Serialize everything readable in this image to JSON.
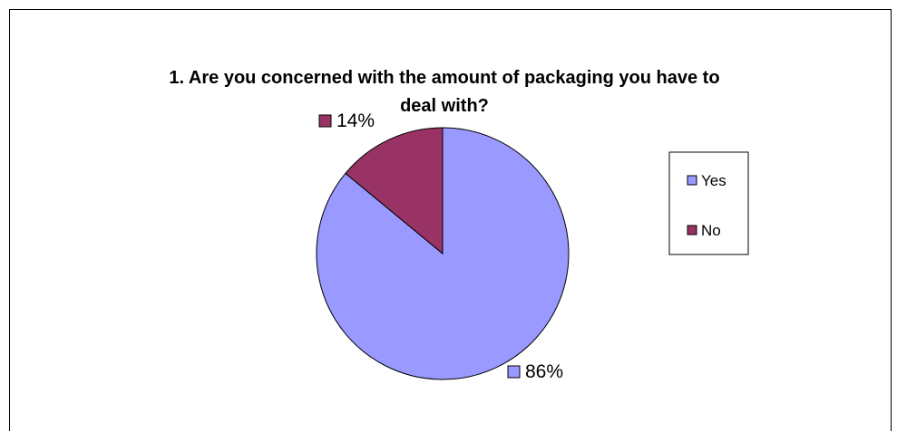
{
  "chart_data": {
    "type": "pie",
    "title": "1. Are you concerned with the amount of packaging you have to deal with?",
    "title_lines": [
      "1. Are you concerned with the amount of packaging you have to",
      "deal with?"
    ],
    "categories": [
      "Yes",
      "No"
    ],
    "values": [
      86,
      14
    ],
    "data_labels": [
      "86%",
      "14%"
    ],
    "colors": [
      "#9999FF",
      "#993366"
    ],
    "legend": {
      "position": "right",
      "entries": [
        "Yes",
        "No"
      ]
    }
  }
}
